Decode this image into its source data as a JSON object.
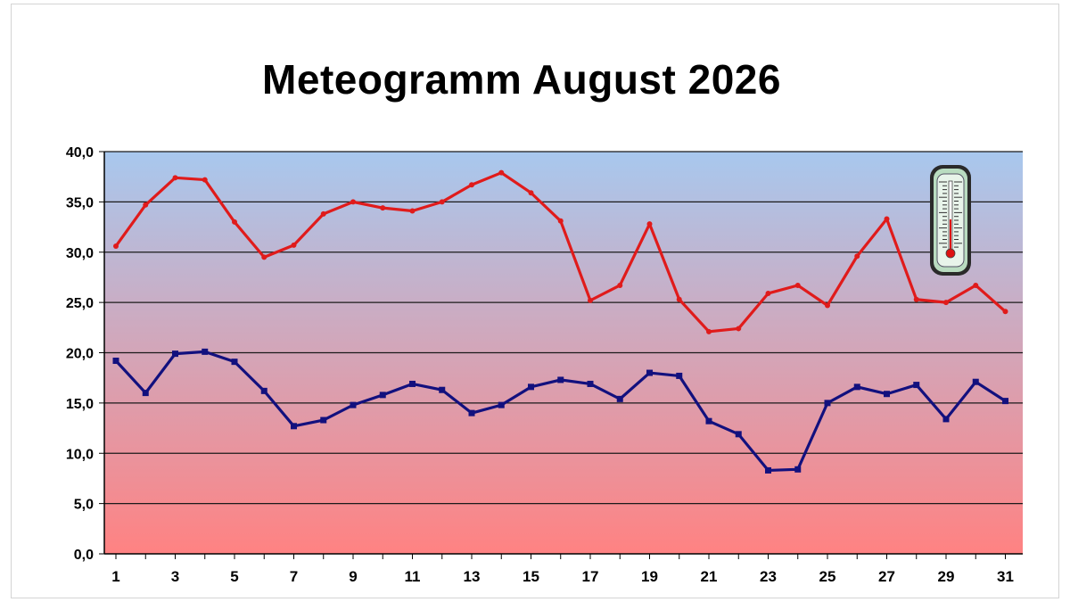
{
  "chart_data": {
    "type": "line",
    "title": "Meteogramm August 2026",
    "xlabel": "",
    "ylabel": "",
    "x": [
      1,
      2,
      3,
      4,
      5,
      6,
      7,
      8,
      9,
      10,
      11,
      12,
      13,
      14,
      15,
      16,
      17,
      18,
      19,
      20,
      21,
      22,
      23,
      24,
      25,
      26,
      27,
      28,
      29,
      30,
      31
    ],
    "x_tick_labels": [
      "1",
      "3",
      "5",
      "7",
      "9",
      "11",
      "13",
      "15",
      "17",
      "19",
      "21",
      "23",
      "25",
      "27",
      "29",
      "31"
    ],
    "y_tick_labels": [
      "0,0",
      "5,0",
      "10,0",
      "15,0",
      "20,0",
      "25,0",
      "30,0",
      "35,0",
      "40,0"
    ],
    "ylim": [
      0,
      40
    ],
    "grid": true,
    "background_gradient": [
      "#a8c8ee",
      "#ff8282"
    ],
    "series": [
      {
        "color": "#e01b1b",
        "marker": "circle",
        "values": [
          30.6,
          34.7,
          37.4,
          37.2,
          33.0,
          29.5,
          30.7,
          33.8,
          35.0,
          34.4,
          34.1,
          35.0,
          36.7,
          37.9,
          35.9,
          33.1,
          25.2,
          26.7,
          32.8,
          25.3,
          22.1,
          22.4,
          25.9,
          26.7,
          24.7,
          29.6,
          33.3,
          25.3,
          25.0,
          26.7,
          24.1
        ]
      },
      {
        "color": "#12107e",
        "marker": "square",
        "values": [
          19.2,
          16.0,
          19.9,
          20.1,
          19.1,
          16.2,
          12.7,
          13.3,
          14.8,
          15.8,
          16.9,
          16.3,
          14.0,
          14.8,
          16.6,
          17.3,
          16.9,
          15.4,
          18.0,
          17.7,
          13.2,
          11.9,
          8.3,
          8.4,
          15.0,
          16.6,
          15.9,
          16.8,
          13.4,
          17.1,
          15.2
        ]
      }
    ],
    "decoration_icon": "thermometer-icon"
  }
}
